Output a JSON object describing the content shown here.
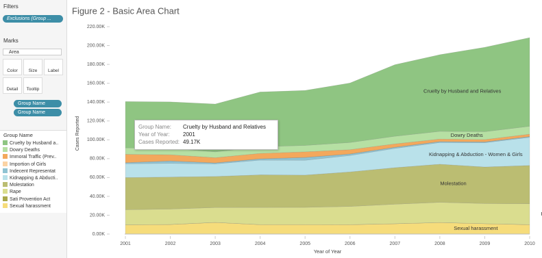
{
  "sidebar": {
    "filters_title": "Filters",
    "filter_pill": "Exclusions (Group ...",
    "marks_title": "Marks",
    "mark_type": "Area",
    "buttons": [
      "Color",
      "Size",
      "Label",
      "Detail",
      "Tooltip"
    ],
    "mark_pills": [
      "Group Name",
      "Group Name"
    ],
    "legend_title": "Group Name"
  },
  "tooltip": {
    "rows": [
      [
        "Group Name:",
        "Cruelty by Husband and Relatives"
      ],
      [
        "Year of Year:",
        "2001"
      ],
      [
        "Cases Reported:",
        "49.17K"
      ]
    ]
  },
  "chart_data": {
    "type": "stacked_area",
    "title": "Figure 2 - Basic Area Chart",
    "x_label": "Year of Year",
    "y_label": "Cases Reported",
    "x": [
      2001,
      2002,
      2003,
      2004,
      2005,
      2006,
      2007,
      2008,
      2009,
      2010
    ],
    "xlim": [
      2001,
      2010
    ],
    "xticks": [
      2001,
      2002,
      2003,
      2004,
      2005,
      2006,
      2007,
      2008,
      2009,
      2010
    ],
    "ylim": [
      0,
      220000
    ],
    "yticks": [
      {
        "value": 0,
        "label": "0.00K"
      },
      {
        "value": 20000,
        "label": "20.00K"
      },
      {
        "value": 40000,
        "label": "40.00K"
      },
      {
        "value": 60000,
        "label": "60.00K"
      },
      {
        "value": 80000,
        "label": "80.00K"
      },
      {
        "value": 100000,
        "label": "100.00K"
      },
      {
        "value": 120000,
        "label": "120.00K"
      },
      {
        "value": 140000,
        "label": "140.00K"
      },
      {
        "value": 160000,
        "label": "160.00K"
      },
      {
        "value": 180000,
        "label": "180.00K"
      },
      {
        "value": 200000,
        "label": "200.00K"
      },
      {
        "value": 220000,
        "label": "220.00K"
      }
    ],
    "grid": false,
    "series": [
      {
        "name": "Cruelty by Husband a..",
        "label": "Cruelty by Husband and Relatives",
        "color": "#8fc582",
        "values": [
          49170,
          49237,
          50703,
          58121,
          58319,
          63128,
          75930,
          81344,
          89546,
          94041
        ]
      },
      {
        "name": "Dowry Deaths",
        "label": "Dowry Deaths",
        "color": "#b6e0a3",
        "values": [
          6851,
          6822,
          6208,
          7026,
          6787,
          7618,
          8093,
          8172,
          8383,
          8391
        ]
      },
      {
        "name": "Immoral Traffic (Prev..",
        "color": "#f3a85c",
        "values": [
          8796,
          6598,
          5510,
          5748,
          5908,
          4541,
          3568,
          2659,
          2474,
          2499
        ]
      },
      {
        "name": "Importion of Girls",
        "color": "#fbd3a4",
        "values": [
          114,
          76,
          46,
          89,
          149,
          67,
          61,
          67,
          48,
          36
        ]
      },
      {
        "name": "Indecent Representat",
        "color": "#8fc3d3",
        "values": [
          1052,
          2508,
          1043,
          1378,
          2917,
          1562,
          1200,
          1025,
          845,
          895
        ]
      },
      {
        "name": "Kidnapping & Abducti..",
        "label": "Kidnapping & Abduction - Women & Girls",
        "color": "#b9e1ea",
        "values": [
          14645,
          14506,
          13296,
          15578,
          15750,
          17414,
          20416,
          22939,
          25741,
          29795
        ]
      },
      {
        "name": "Molestation",
        "label": "Molestation",
        "color": "#bbbd72",
        "values": [
          34124,
          33943,
          32939,
          34567,
          34175,
          36617,
          38734,
          40413,
          38711,
          40613
        ]
      },
      {
        "name": "Rape",
        "label": "Rape",
        "color": "#dadd8f",
        "values": [
          16075,
          16373,
          15847,
          18233,
          18359,
          19348,
          20737,
          21467,
          21397,
          22172
        ]
      },
      {
        "name": "Sati Provention Act",
        "color": "#a9a84a",
        "values": [
          0,
          0,
          0,
          0,
          1,
          0,
          0,
          1,
          0,
          0
        ]
      },
      {
        "name": "Sexual harassment",
        "label": "Sexual harassment",
        "color": "#f6dc7b",
        "values": [
          9746,
          10155,
          12325,
          10001,
          9984,
          9966,
          10950,
          12214,
          11009,
          9961
        ]
      }
    ]
  }
}
